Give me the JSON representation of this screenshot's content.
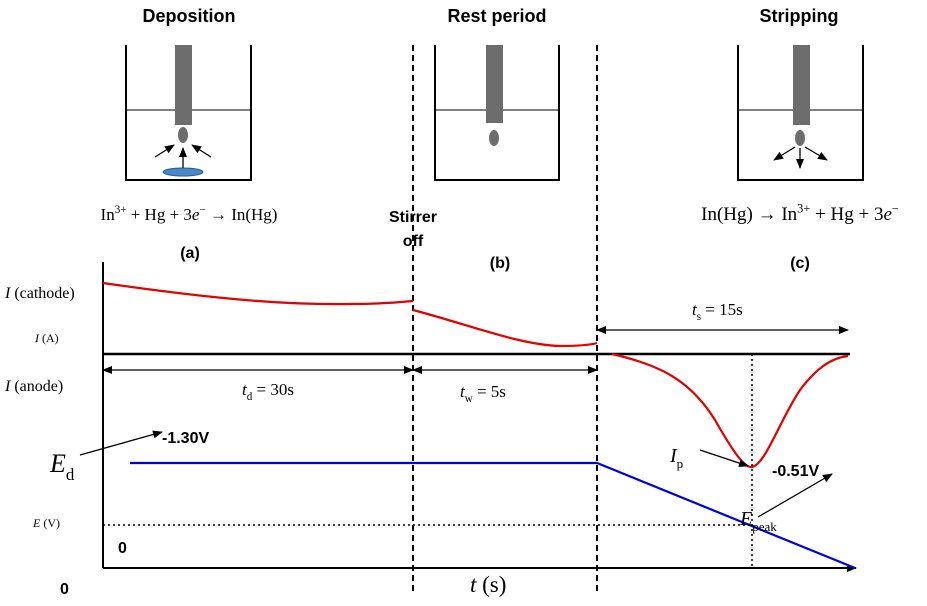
{
  "texts": [
    {
      "parts": [
        {
          "text": "Deposition"
        }
      ]
    },
    {
      "parts": [
        {
          "text": "Rest period"
        }
      ]
    },
    {
      "parts": [
        {
          "text": "Stripping"
        }
      ]
    },
    {
      "parts": [
        {
          "text": "In"
        },
        {
          "text": "3+",
          "style": "sup"
        },
        {
          "text": " + Hg + 3"
        },
        {
          "text": "e",
          "style": "italic"
        },
        {
          "text": "−",
          "style": "sup"
        },
        {
          "text": " → In(Hg)"
        }
      ]
    },
    {
      "parts": [
        {
          "text": "In(Hg) → In"
        },
        {
          "text": "3+",
          "style": "sup"
        },
        {
          "text": " + Hg + 3"
        },
        {
          "text": "e",
          "style": "italic"
        },
        {
          "text": "−",
          "style": "sup"
        }
      ]
    },
    {
      "parts": [
        {
          "text": "(a)"
        }
      ]
    },
    {
      "parts": [
        {
          "text": "(b)"
        }
      ]
    },
    {
      "parts": [
        {
          "text": "(c)"
        }
      ]
    },
    {
      "parts": [
        {
          "text": "Stirrer"
        }
      ]
    },
    {
      "parts": [
        {
          "text": "off"
        }
      ]
    },
    {
      "parts": [
        {
          "text": "I",
          "style": "italic"
        },
        {
          "text": " (cathode)"
        }
      ]
    },
    {
      "parts": [
        {
          "text": "I",
          "style": "italic"
        },
        {
          "text": " (A)"
        }
      ]
    },
    {
      "parts": [
        {
          "text": "I",
          "style": "italic"
        },
        {
          "text": " (anode)"
        }
      ]
    },
    {
      "parts": [
        {
          "text": "E",
          "style": "italic"
        },
        {
          "text": "d",
          "style": "sub"
        }
      ]
    },
    {
      "parts": [
        {
          "text": "E",
          "style": "italic"
        },
        {
          "text": " (V)"
        }
      ]
    },
    {
      "parts": [
        {
          "text": "0"
        }
      ]
    },
    {
      "parts": [
        {
          "text": "0"
        }
      ]
    },
    {
      "parts": [
        {
          "text": "t",
          "style": "italic"
        },
        {
          "text": "d",
          "style": "sub"
        },
        {
          "text": " = 30s"
        }
      ]
    },
    {
      "parts": [
        {
          "text": "t",
          "style": "italic"
        },
        {
          "text": "w",
          "style": "sub"
        },
        {
          "text": " = 5s"
        }
      ]
    },
    {
      "parts": [
        {
          "text": "t",
          "style": "italic"
        },
        {
          "text": "s",
          "style": "sub"
        },
        {
          "text": " = 15s"
        }
      ]
    },
    {
      "parts": [
        {
          "text": "-1.30V"
        }
      ]
    },
    {
      "parts": [
        {
          "text": "-0.51V"
        }
      ]
    },
    {
      "parts": [
        {
          "text": "I",
          "style": "italic"
        },
        {
          "text": "p",
          "style": "sub"
        }
      ]
    },
    {
      "parts": [
        {
          "text": "E",
          "style": "italic"
        },
        {
          "text": "peak",
          "style": "sub"
        }
      ]
    },
    {
      "parts": [
        {
          "text": "t",
          "style": "italic"
        },
        {
          "text": "  (s)"
        }
      ]
    }
  ]
}
